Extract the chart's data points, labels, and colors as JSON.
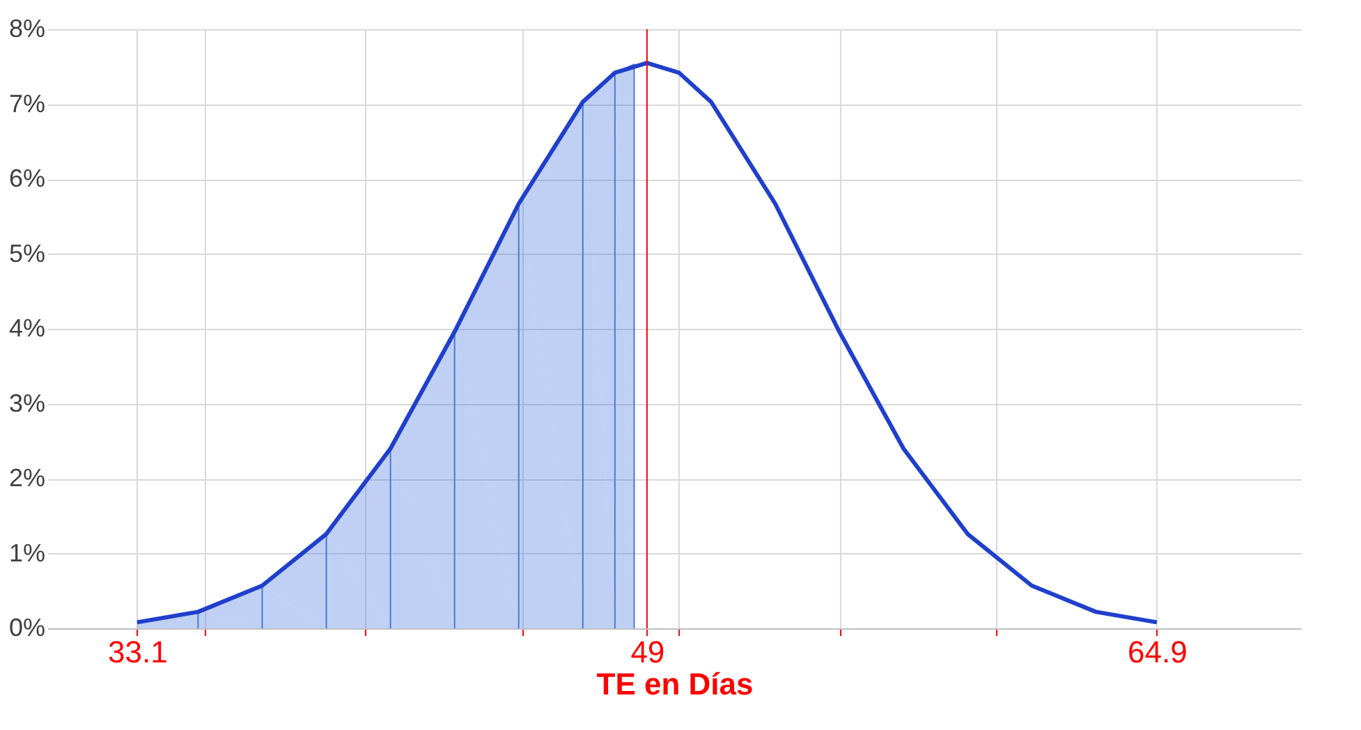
{
  "chart_data": {
    "type": "line",
    "xlabel": "TE en Días",
    "xlim": [
      30.3,
      69.4
    ],
    "ylim": [
      0,
      8
    ],
    "xticks": [
      {
        "value": 33.1,
        "label": "33.1"
      },
      {
        "value": 35.2,
        "label": null
      },
      {
        "value": 40.2,
        "label": null
      },
      {
        "value": 45.1,
        "label": null
      },
      {
        "value": 49,
        "label": "49"
      },
      {
        "value": 50,
        "label": null
      },
      {
        "value": 55,
        "label": null
      },
      {
        "value": 59.9,
        "label": null
      },
      {
        "value": 64.9,
        "label": "64.9"
      }
    ],
    "yticks": [
      {
        "value": 0,
        "label": "0%"
      },
      {
        "value": 1,
        "label": "1%"
      },
      {
        "value": 2,
        "label": "2%"
      },
      {
        "value": 3,
        "label": "3%"
      },
      {
        "value": 4,
        "label": "4%"
      },
      {
        "value": 5,
        "label": "5%"
      },
      {
        "value": 6,
        "label": "6%"
      },
      {
        "value": 7,
        "label": "7%"
      },
      {
        "value": 8,
        "label": "8%"
      }
    ],
    "grid": true,
    "series": [
      {
        "type": "area",
        "color": "#4a78e0",
        "x": [
          33.1,
          35,
          37,
          39,
          41,
          43,
          45,
          47,
          48,
          48.6
        ],
        "values": [
          0.08,
          0.22,
          0.57,
          1.26,
          2.4,
          3.96,
          5.67,
          7.03,
          7.42,
          7.53
        ]
      },
      {
        "color": "#1f3fcc",
        "x": [
          33.1,
          35,
          37,
          39,
          41,
          43,
          45,
          47,
          48,
          49,
          50,
          51,
          53,
          55,
          57,
          59,
          61,
          63,
          64.9
        ],
        "values": [
          0.08,
          0.22,
          0.57,
          1.26,
          2.4,
          3.96,
          5.67,
          7.03,
          7.42,
          7.55,
          7.42,
          7.03,
          5.67,
          3.96,
          2.4,
          1.26,
          0.57,
          0.22,
          0.08
        ]
      }
    ],
    "ref_lines": [
      {
        "axis": "x",
        "value": 49,
        "color": "#ff0000"
      }
    ]
  }
}
